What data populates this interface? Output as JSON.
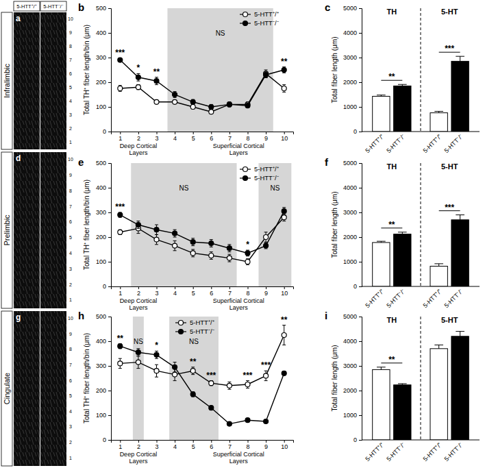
{
  "figure": {
    "image_panels": {
      "columns": [
        "5-HTT⁺/⁺",
        "5-HTT⁻/⁻"
      ],
      "layers": [
        1,
        2,
        3,
        4,
        5,
        6,
        7,
        8,
        9,
        10
      ],
      "rows": [
        {
          "letter": "a",
          "label": "Infralimbic"
        },
        {
          "letter": "d",
          "label": "Prelimbic"
        },
        {
          "letter": "g",
          "label": "Cingulate"
        }
      ]
    }
  },
  "chart_data": [
    {
      "type": "line",
      "title": "b",
      "y_label": "Total TH⁺ fiber length/bin (μm)",
      "x_groups": [
        "Deep Cortical Layers",
        "Superficial Cortical Layers"
      ],
      "x": [
        1,
        2,
        3,
        4,
        5,
        6,
        7,
        8,
        9,
        10
      ],
      "xlim": [
        0.5,
        10.5
      ],
      "xticks": [
        1,
        2,
        3,
        4,
        5,
        6,
        7,
        8,
        9,
        10
      ],
      "ylim": [
        0,
        500
      ],
      "yticks": [
        0,
        100,
        200,
        300,
        400,
        500
      ],
      "legend": "upper right",
      "series": [
        {
          "name": "5-HTT⁺/⁺",
          "color": "#000000",
          "marker": "open-circle",
          "values": [
            175,
            180,
            120,
            120,
            100,
            80,
            110,
            110,
            235,
            175
          ],
          "errors": [
            12,
            10,
            8,
            8,
            8,
            8,
            10,
            10,
            15,
            15
          ]
        },
        {
          "name": "5-HTT⁻/⁻",
          "color": "#000000",
          "marker": "filled-circle",
          "values": [
            290,
            220,
            205,
            150,
            120,
            100,
            110,
            105,
            230,
            250
          ],
          "errors": [
            8,
            15,
            15,
            12,
            10,
            10,
            8,
            8,
            12,
            12
          ]
        }
      ],
      "shaded": [
        {
          "from": 3.6,
          "to": 9.4,
          "label": "NS"
        }
      ],
      "annotations": [
        {
          "x": 1,
          "text": "***"
        },
        {
          "x": 2,
          "text": "*"
        },
        {
          "x": 3,
          "text": "**"
        },
        {
          "x": 10,
          "text": "**"
        }
      ]
    },
    {
      "type": "bar",
      "title": "c",
      "y_label": "Total fiber length (μm)",
      "categories": [
        "TH",
        "5-HT"
      ],
      "ylim": [
        0,
        5000
      ],
      "yticks": [
        0,
        1000,
        2000,
        3000,
        4000,
        5000
      ],
      "series": [
        {
          "name": "5-HTT⁺/⁺",
          "color": "#ffffff",
          "values": [
            1430,
            760
          ],
          "errors": [
            50,
            60
          ]
        },
        {
          "name": "5-HTT⁻/⁻",
          "color": "#000000",
          "values": [
            1850,
            2850
          ],
          "errors": [
            60,
            200
          ]
        }
      ],
      "annotations": [
        {
          "category": 0,
          "text": "**"
        },
        {
          "category": 1,
          "text": "***"
        }
      ]
    },
    {
      "type": "line",
      "title": "e",
      "y_label": "Total TH⁺ fiber length/bin (μm)",
      "x_groups": [
        "Deep Cortical Layers",
        "Superficial Cortical Layers"
      ],
      "x": [
        1,
        2,
        3,
        4,
        5,
        6,
        7,
        8,
        9,
        10
      ],
      "xlim": [
        0.5,
        10.5
      ],
      "xticks": [
        1,
        2,
        3,
        4,
        5,
        6,
        7,
        8,
        9,
        10
      ],
      "ylim": [
        0,
        500
      ],
      "yticks": [
        0,
        100,
        200,
        300,
        400,
        500
      ],
      "legend": "upper right",
      "series": [
        {
          "name": "5-HTT⁺/⁺",
          "color": "#000000",
          "marker": "open-circle",
          "values": [
            220,
            235,
            190,
            165,
            135,
            125,
            115,
            100,
            200,
            280
          ],
          "errors": [
            10,
            20,
            20,
            20,
            15,
            15,
            15,
            12,
            20,
            15
          ]
        },
        {
          "name": "5-HTT⁻/⁻",
          "color": "#000000",
          "marker": "filled-circle",
          "values": [
            290,
            250,
            230,
            215,
            180,
            175,
            155,
            135,
            165,
            305
          ],
          "errors": [
            10,
            15,
            20,
            15,
            15,
            15,
            15,
            12,
            12,
            15
          ]
        }
      ],
      "shaded": [
        {
          "from": 1.6,
          "to": 7.4,
          "label": "NS"
        },
        {
          "from": 8.6,
          "to": 10.4,
          "label": "NS"
        }
      ],
      "annotations": [
        {
          "x": 1,
          "text": "***"
        },
        {
          "x": 8,
          "text": "*"
        }
      ]
    },
    {
      "type": "bar",
      "title": "f",
      "y_label": "Total fiber length (μm)",
      "categories": [
        "TH",
        "5-HT"
      ],
      "ylim": [
        0,
        5000
      ],
      "yticks": [
        0,
        1000,
        2000,
        3000,
        4000,
        5000
      ],
      "series": [
        {
          "name": "5-HTT⁺/⁺",
          "color": "#ffffff",
          "values": [
            1780,
            820
          ],
          "errors": [
            50,
            100
          ]
        },
        {
          "name": "5-HTT⁻/⁻",
          "color": "#000000",
          "values": [
            2120,
            2700
          ],
          "errors": [
            80,
            200
          ]
        }
      ],
      "annotations": [
        {
          "category": 0,
          "text": "**"
        },
        {
          "category": 1,
          "text": "***"
        }
      ]
    },
    {
      "type": "line",
      "title": "h",
      "y_label": "Total TH⁺ fiber length/bin (μm)",
      "x_groups": [
        "Deep Cortical Layers",
        "Superficial Cortical Layers"
      ],
      "x": [
        1,
        2,
        3,
        4,
        5,
        6,
        7,
        8,
        9,
        10
      ],
      "xlim": [
        0.5,
        10.5
      ],
      "xticks": [
        1,
        2,
        3,
        4,
        5,
        6,
        7,
        8,
        9,
        10
      ],
      "ylim": [
        0,
        500
      ],
      "yticks": [
        0,
        100,
        200,
        300,
        400,
        500
      ],
      "legend": "upper center",
      "series": [
        {
          "name": "5-HTT⁺/⁺",
          "color": "#000000",
          "marker": "open-circle",
          "values": [
            310,
            315,
            280,
            265,
            280,
            230,
            220,
            225,
            260,
            425
          ],
          "errors": [
            20,
            25,
            25,
            25,
            15,
            10,
            15,
            15,
            20,
            40
          ]
        },
        {
          "name": "5-HTT⁻/⁻",
          "color": "#000000",
          "marker": "filled-circle",
          "values": [
            380,
            355,
            345,
            295,
            185,
            130,
            65,
            80,
            75,
            270
          ],
          "errors": [
            10,
            15,
            15,
            20,
            10,
            8,
            5,
            5,
            5,
            8
          ]
        }
      ],
      "shaded": [
        {
          "from": 1.7,
          "to": 2.3,
          "label": "NS"
        },
        {
          "from": 3.7,
          "to": 6.4,
          "label": "NS"
        }
      ],
      "annotations": [
        {
          "x": 1,
          "text": "**"
        },
        {
          "x": 3,
          "text": "*"
        },
        {
          "x": 5,
          "text": "**"
        },
        {
          "x": 6,
          "text": "***"
        },
        {
          "x": 8,
          "text": "***"
        },
        {
          "x": 9,
          "text": "***"
        },
        {
          "x": 10,
          "text": "**"
        }
      ]
    },
    {
      "type": "bar",
      "title": "i",
      "y_label": "Total fiber length (μm)",
      "categories": [
        "TH",
        "5-HT"
      ],
      "ylim": [
        0,
        5000
      ],
      "yticks": [
        0,
        1000,
        2000,
        3000,
        4000,
        5000
      ],
      "series": [
        {
          "name": "5-HTT⁺/⁺",
          "color": "#ffffff",
          "values": [
            2850,
            3700
          ],
          "errors": [
            100,
            150
          ]
        },
        {
          "name": "5-HTT⁻/⁻",
          "color": "#000000",
          "values": [
            2230,
            4200
          ],
          "errors": [
            50,
            200
          ]
        }
      ],
      "annotations": [
        {
          "category": 0,
          "text": "**"
        }
      ]
    }
  ]
}
